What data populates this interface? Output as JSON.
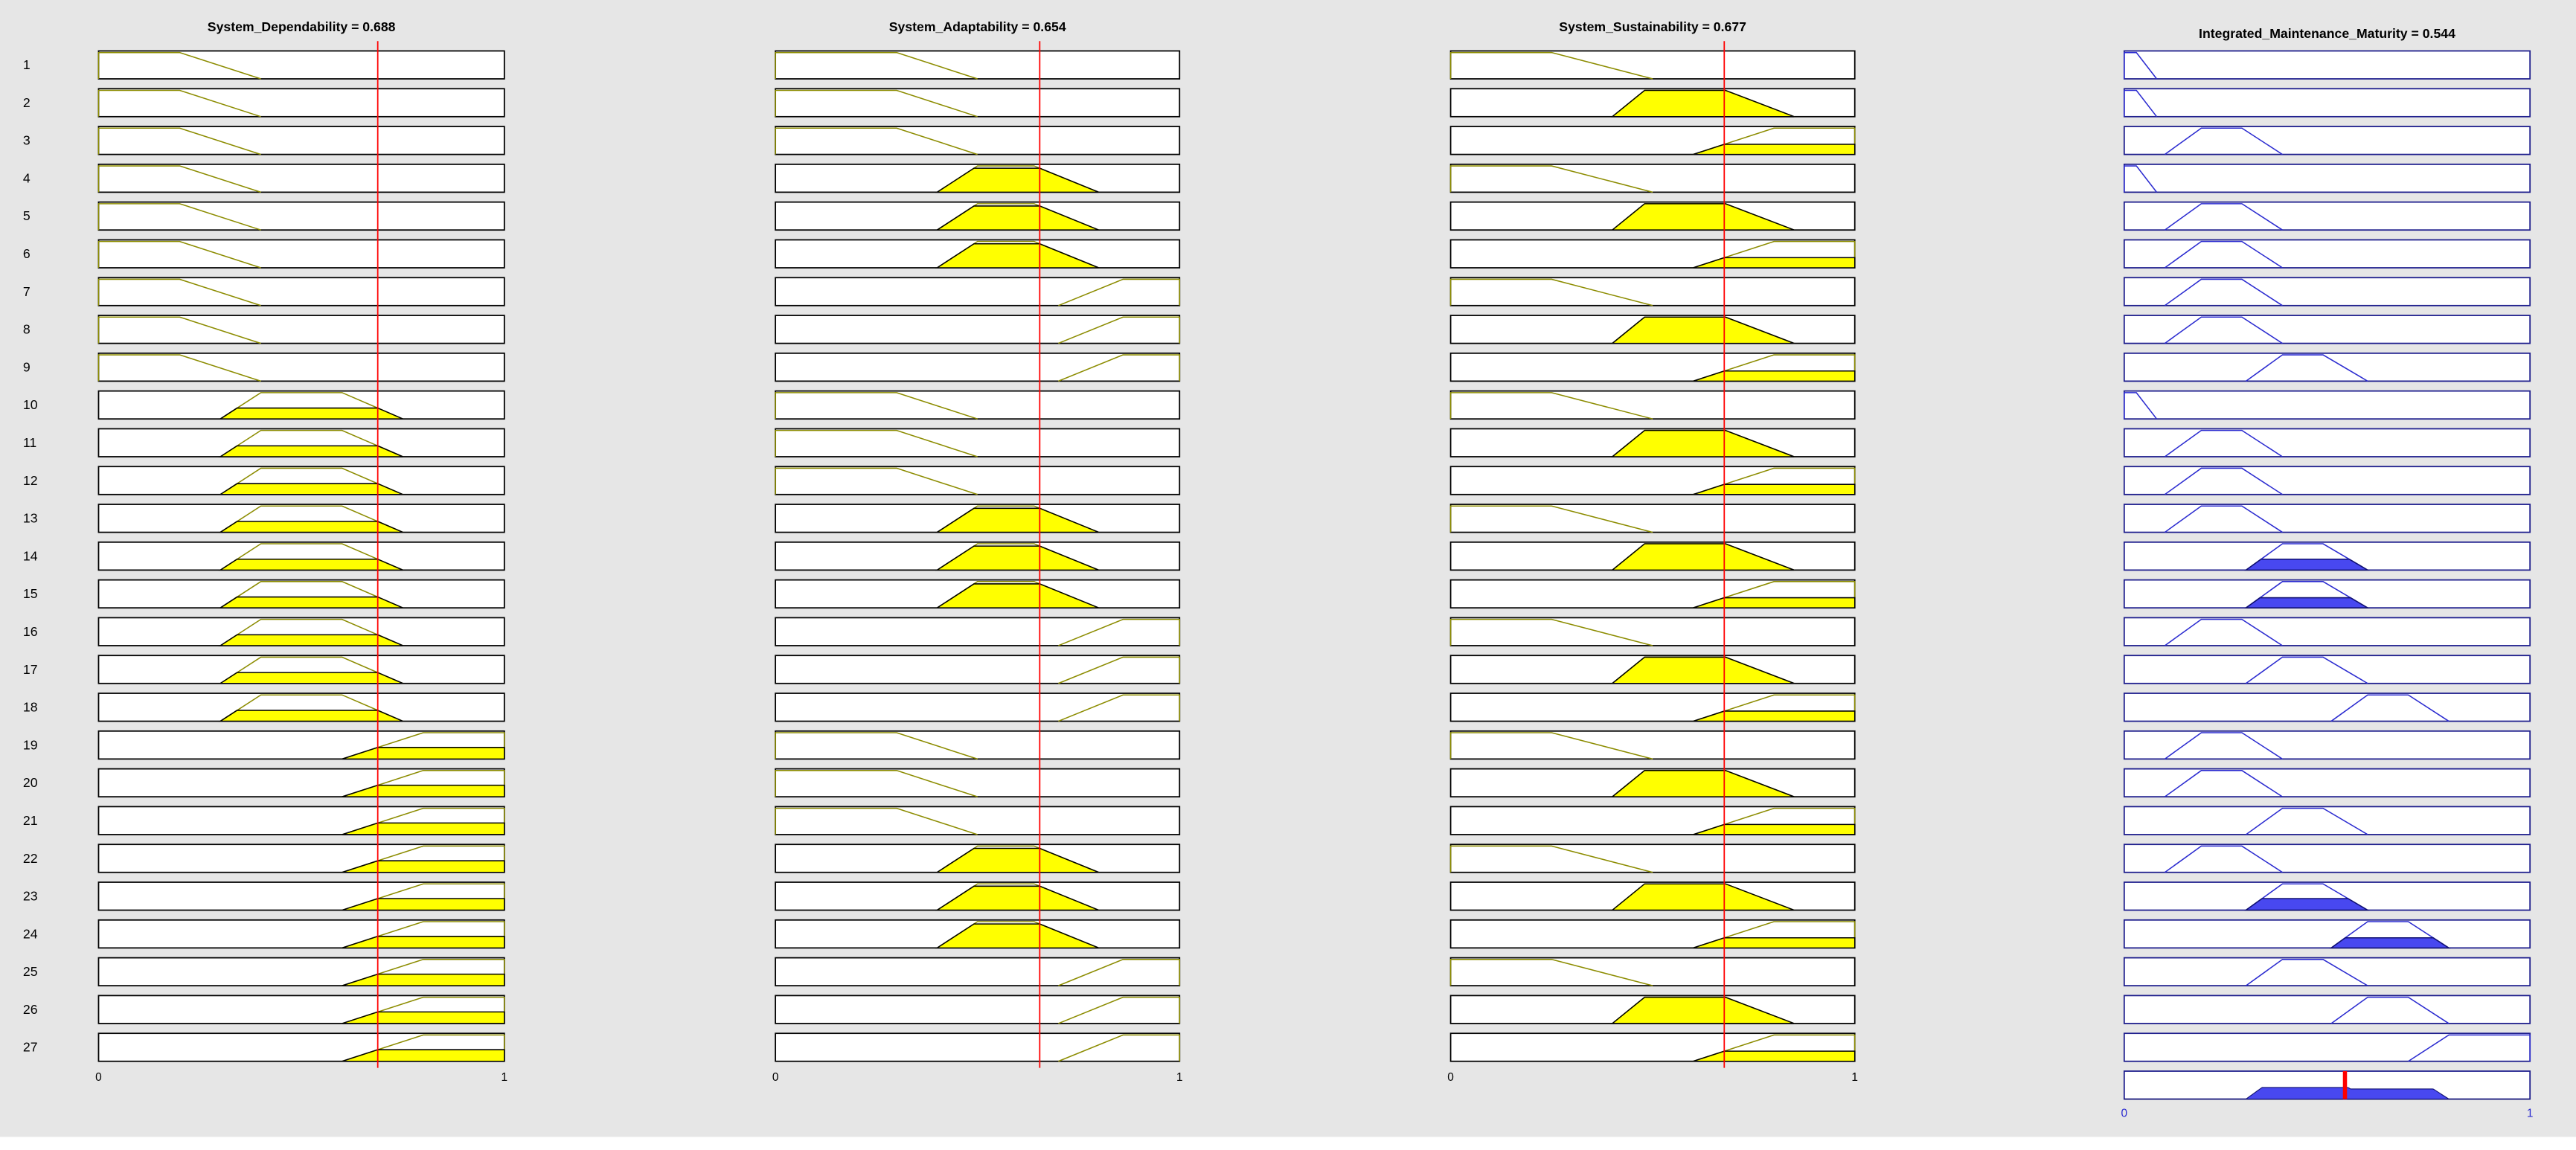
{
  "variables": [
    {
      "title": "System_Dependability = 0.688",
      "value": 0.688,
      "mfs": [
        [
          0,
          0,
          0.2,
          0.4
        ],
        [
          0.3,
          0.4,
          0.6,
          0.75
        ],
        [
          0.6,
          0.8,
          1,
          1
        ]
      ]
    },
    {
      "title": "System_Adaptability = 0.654",
      "value": 0.654,
      "mfs": [
        [
          0,
          0,
          0.3,
          0.5
        ],
        [
          0.4,
          0.5,
          0.64,
          0.8
        ],
        [
          0.7,
          0.86,
          1,
          1
        ]
      ]
    },
    {
      "title": "System_Sustainability = 0.677",
      "value": 0.677,
      "mfs": [
        [
          0,
          0,
          0.25,
          0.5
        ],
        [
          0.4,
          0.48,
          0.68,
          0.85
        ],
        [
          0.6,
          0.8,
          1,
          1
        ]
      ]
    }
  ],
  "output": {
    "title": "Integrated_Maintenance_Maturity = 0.544",
    "value": 0.544,
    "mfs": [
      [
        0,
        0,
        0.03,
        0.08
      ],
      [
        0.1,
        0.19,
        0.29,
        0.39
      ],
      [
        0.3,
        0.39,
        0.49,
        0.6
      ],
      [
        0.51,
        0.6,
        0.7,
        0.8
      ],
      [
        0.7,
        0.8,
        1,
        1
      ]
    ]
  },
  "rules": [
    {
      "label": 1,
      "mfs": [
        1,
        1,
        1,
        1
      ]
    },
    {
      "label": 2,
      "mfs": [
        1,
        1,
        2,
        1
      ]
    },
    {
      "label": 3,
      "mfs": [
        1,
        1,
        3,
        2
      ]
    },
    {
      "label": 4,
      "mfs": [
        1,
        2,
        1,
        1
      ]
    },
    {
      "label": 5,
      "mfs": [
        1,
        2,
        2,
        2
      ]
    },
    {
      "label": 6,
      "mfs": [
        1,
        2,
        3,
        2
      ]
    },
    {
      "label": 7,
      "mfs": [
        1,
        3,
        1,
        2
      ]
    },
    {
      "label": 8,
      "mfs": [
        1,
        3,
        2,
        2
      ]
    },
    {
      "label": 9,
      "mfs": [
        1,
        3,
        3,
        3
      ]
    },
    {
      "label": 10,
      "mfs": [
        2,
        1,
        1,
        1
      ]
    },
    {
      "label": 11,
      "mfs": [
        2,
        1,
        2,
        2
      ]
    },
    {
      "label": 12,
      "mfs": [
        2,
        1,
        3,
        2
      ]
    },
    {
      "label": 13,
      "mfs": [
        2,
        2,
        1,
        2
      ]
    },
    {
      "label": 14,
      "mfs": [
        2,
        2,
        2,
        3
      ]
    },
    {
      "label": 15,
      "mfs": [
        2,
        2,
        3,
        3
      ]
    },
    {
      "label": 16,
      "mfs": [
        2,
        3,
        1,
        2
      ]
    },
    {
      "label": 17,
      "mfs": [
        2,
        3,
        2,
        3
      ]
    },
    {
      "label": 18,
      "mfs": [
        2,
        3,
        3,
        4
      ]
    },
    {
      "label": 19,
      "mfs": [
        3,
        1,
        1,
        2
      ]
    },
    {
      "label": 20,
      "mfs": [
        3,
        1,
        2,
        2
      ]
    },
    {
      "label": 21,
      "mfs": [
        3,
        1,
        3,
        3
      ]
    },
    {
      "label": 22,
      "mfs": [
        3,
        2,
        1,
        2
      ]
    },
    {
      "label": 23,
      "mfs": [
        3,
        2,
        2,
        3
      ]
    },
    {
      "label": 24,
      "mfs": [
        3,
        2,
        3,
        4
      ]
    },
    {
      "label": 25,
      "mfs": [
        3,
        3,
        1,
        3
      ]
    },
    {
      "label": 26,
      "mfs": [
        3,
        3,
        2,
        4
      ]
    },
    {
      "label": 27,
      "mfs": [
        3,
        3,
        3,
        5
      ]
    }
  ],
  "xticks": [
    0,
    1
  ]
}
